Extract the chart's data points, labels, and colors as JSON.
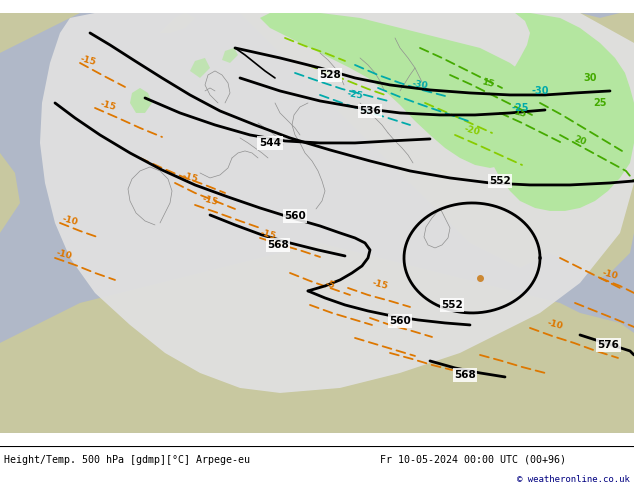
{
  "title_left": "Height/Temp. 500 hPa [gdmp][°C] Arpege-eu",
  "title_right": "Fr 10-05-2024 00:00 UTC (00+96)",
  "credit": "© weatheronline.co.uk",
  "land_color": "#c8c8a0",
  "ocean_color": "#b0b8c8",
  "domain_color": "#e0e0e0",
  "green_shading": "#b4e6a0",
  "green_bright": "#78d460",
  "blue_lakes": "#6aaad2",
  "footer_text_color": "#000000",
  "credit_color": "#000080",
  "contour_lw": 2.0,
  "temp_lw": 1.3
}
